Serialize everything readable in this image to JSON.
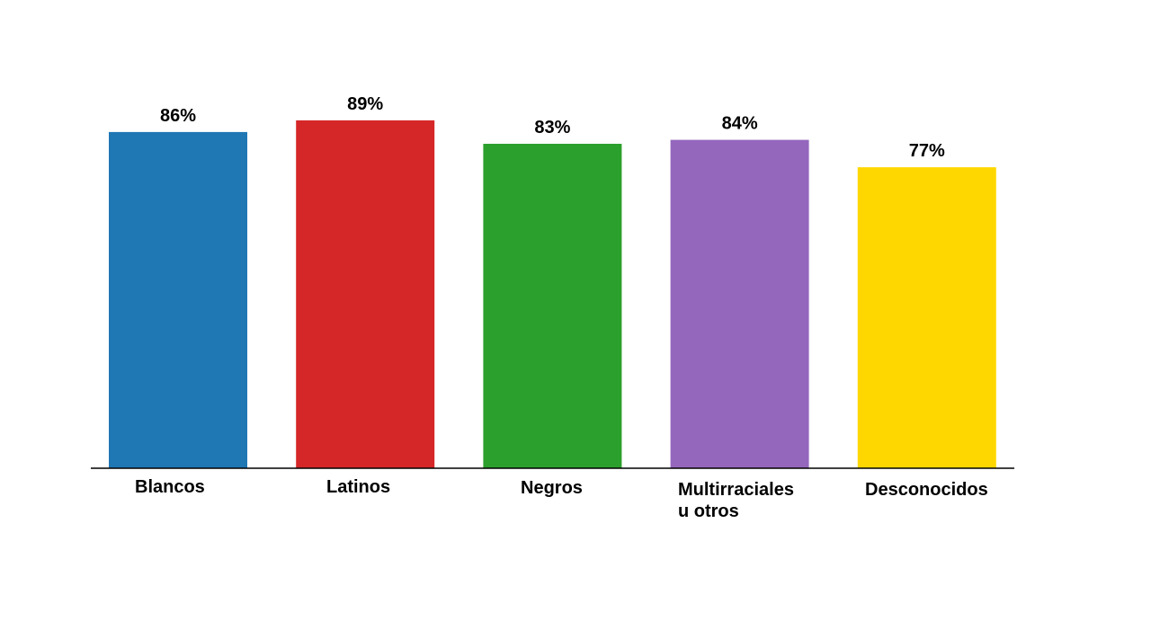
{
  "chart_data": {
    "type": "bar",
    "categories": [
      [
        "Blancos"
      ],
      [
        "Latinos"
      ],
      [
        "Negros"
      ],
      [
        "Multirraciales",
        "u otros"
      ],
      [
        "Desconocidos"
      ]
    ],
    "values": [
      86,
      89,
      83,
      84,
      77
    ],
    "value_labels": [
      "86%",
      "89%",
      "83%",
      "84%",
      "77%"
    ],
    "colors": [
      "#1f77b4",
      "#d62728",
      "#2ca02c",
      "#9467bd",
      "#ffd700"
    ],
    "title": "",
    "xlabel": "",
    "ylabel": "",
    "ylim": [
      0,
      100
    ],
    "grid": false,
    "legend": "none",
    "axis_color": "#000000"
  }
}
